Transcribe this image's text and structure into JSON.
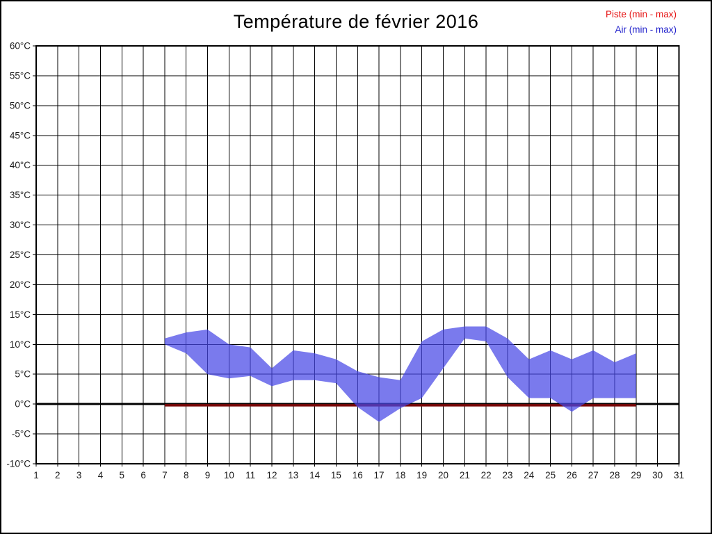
{
  "header": {
    "title": "Température de février 2016"
  },
  "legend": [
    {
      "label": "Piste (min - max)",
      "color": "#e61414"
    },
    {
      "label": "Air (min - max)",
      "color": "#2323cc"
    }
  ],
  "chart_data": {
    "type": "area",
    "title": "Température de février 2016",
    "xlabel": "",
    "ylabel": "",
    "xlim": [
      1,
      31
    ],
    "ylim": [
      -10,
      60
    ],
    "grid": true,
    "grid_color": "#000000",
    "x_ticks": [
      "1",
      "2",
      "3",
      "4",
      "5",
      "6",
      "7",
      "8",
      "9",
      "10",
      "11",
      "12",
      "13",
      "14",
      "15",
      "16",
      "17",
      "18",
      "19",
      "20",
      "21",
      "22",
      "23",
      "24",
      "25",
      "26",
      "27",
      "28",
      "29",
      "30",
      "31"
    ],
    "y_tick_values": [
      60,
      55,
      50,
      45,
      40,
      35,
      30,
      25,
      20,
      15,
      10,
      5,
      0,
      -5,
      -10
    ],
    "y_tick_labels": [
      "60°C",
      "55°C",
      "50°C",
      "45°C",
      "40°C",
      "35°C",
      "30°C",
      "25°C",
      "20°C",
      "15°C",
      "10°C",
      "5°C",
      "0°C",
      "-5°C",
      "-10°C"
    ],
    "zero_line": {
      "value": 0,
      "color": "#000000",
      "width": 3
    },
    "series": [
      {
        "name": "Piste (min - max)",
        "legend_color": "#e61414",
        "fill_color": "#7a0909",
        "days": [
          7,
          8,
          9,
          10,
          11,
          12,
          13,
          14,
          15,
          16,
          17,
          18,
          19,
          20,
          21,
          22,
          23,
          24,
          25,
          26,
          27,
          28,
          29
        ],
        "min": [
          -0.4,
          -0.4,
          -0.4,
          -0.4,
          -0.4,
          -0.4,
          -0.4,
          -0.4,
          -0.4,
          -0.4,
          -0.4,
          -0.4,
          -0.4,
          -0.4,
          -0.4,
          -0.4,
          -0.4,
          -0.4,
          -0.4,
          -0.4,
          -0.4,
          -0.4,
          -0.4
        ],
        "max": [
          0,
          0,
          0,
          0,
          0,
          0,
          0,
          0,
          0,
          0,
          0,
          0,
          0,
          0,
          0,
          0,
          0,
          0,
          0,
          0,
          0,
          0,
          0
        ]
      },
      {
        "name": "Air (min - max)",
        "legend_color": "#2323cc",
        "fill_color": "#4646e6",
        "fill_opacity": 0.72,
        "days": [
          7,
          8,
          9,
          10,
          11,
          12,
          13,
          14,
          15,
          16,
          17,
          18,
          19,
          20,
          21,
          22,
          23,
          24,
          25,
          26,
          27,
          28,
          29
        ],
        "min": [
          10,
          8.5,
          5,
          4.3,
          4.7,
          3,
          4,
          4,
          3.5,
          -0.5,
          -3,
          -0.7,
          1,
          6,
          11,
          10.5,
          4.5,
          1,
          1,
          -1.3,
          1,
          1,
          1
        ],
        "max": [
          11,
          12,
          12.5,
          10,
          9.5,
          6,
          9,
          8.5,
          7.5,
          5.5,
          4.5,
          4,
          10.5,
          12.5,
          13,
          13,
          11,
          7.5,
          9,
          7.5,
          9,
          7,
          8.5
        ]
      }
    ]
  }
}
